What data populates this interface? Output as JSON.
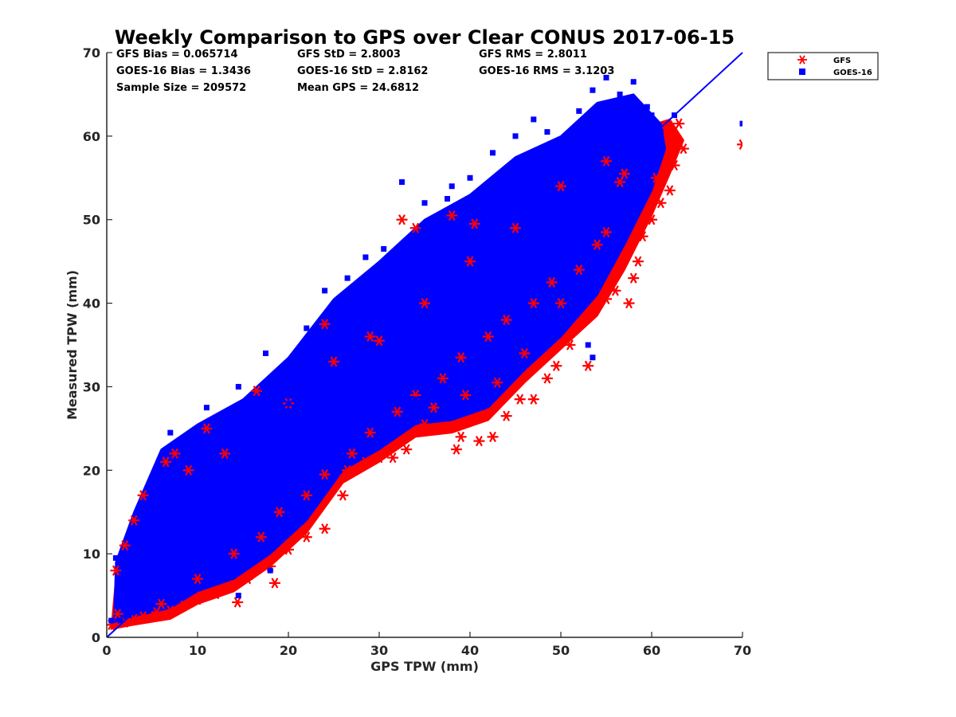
{
  "chart_data": {
    "type": "scatter",
    "title": "Weekly Comparison to GPS over Clear CONUS 2017-06-15",
    "xlabel": "GPS TPW (mm)",
    "ylabel": "Measured TPW (mm)",
    "xlim": [
      0,
      70
    ],
    "ylim": [
      0,
      70
    ],
    "xticks": [
      "0",
      "10",
      "20",
      "30",
      "40",
      "50",
      "60",
      "70"
    ],
    "yticks": [
      "0",
      "10",
      "20",
      "30",
      "40",
      "50",
      "60",
      "70"
    ],
    "grid": false,
    "legend_position": "outside-top-right",
    "reference_line": {
      "from": [
        0,
        0
      ],
      "to": [
        70,
        70
      ],
      "color": "#0000ff"
    },
    "stats": [
      [
        "GFS Bias = 0.065714",
        "GFS StD = 2.8003",
        "GFS RMS = 2.8011"
      ],
      [
        "GOES-16 Bias = 1.3436",
        "GOES-16 StD = 2.8162",
        "GOES-16 RMS = 3.1203"
      ],
      [
        "Sample Size = 209572",
        "Mean GPS = 24.6812",
        ""
      ]
    ],
    "series": [
      {
        "name": "GFS",
        "marker": "asterisk",
        "color": "#ff0000",
        "points": [
          [
            0.5,
            1.5
          ],
          [
            1.2,
            2.8
          ],
          [
            2.0,
            1.8
          ],
          [
            3.0,
            2.2
          ],
          [
            4.0,
            2.5
          ],
          [
            5.5,
            3.0
          ],
          [
            7.0,
            3.2
          ],
          [
            8.5,
            3.8
          ],
          [
            10.0,
            4.5
          ],
          [
            12.0,
            5.2
          ],
          [
            14.4,
            4.2
          ],
          [
            15.5,
            7.0
          ],
          [
            18.5,
            6.5
          ],
          [
            18.0,
            8.5
          ],
          [
            20.0,
            10.5
          ],
          [
            22.0,
            12.0
          ],
          [
            24.0,
            13.0
          ],
          [
            26.0,
            17.0
          ],
          [
            26.5,
            20.0
          ],
          [
            28.5,
            21.0
          ],
          [
            30.0,
            21.5
          ],
          [
            31.5,
            21.5
          ],
          [
            33.0,
            22.5
          ],
          [
            35.0,
            25.5
          ],
          [
            37.0,
            25.0
          ],
          [
            38.5,
            22.5
          ],
          [
            39.0,
            24.0
          ],
          [
            41.0,
            23.5
          ],
          [
            42.5,
            24.0
          ],
          [
            44.0,
            26.5
          ],
          [
            45.5,
            28.5
          ],
          [
            47.0,
            28.5
          ],
          [
            48.5,
            31.0
          ],
          [
            49.5,
            32.5
          ],
          [
            51.0,
            35.0
          ],
          [
            53.0,
            32.5
          ],
          [
            53.5,
            39.0
          ],
          [
            55.0,
            40.5
          ],
          [
            56.0,
            41.5
          ],
          [
            57.5,
            40.0
          ],
          [
            58.0,
            43.0
          ],
          [
            58.5,
            45.0
          ],
          [
            59.0,
            48.0
          ],
          [
            60.0,
            50.0
          ],
          [
            61.0,
            52.0
          ],
          [
            62.0,
            53.5
          ],
          [
            62.5,
            56.5
          ],
          [
            63.5,
            58.5
          ],
          [
            63.0,
            61.5
          ],
          [
            70.0,
            59.0
          ],
          [
            60.5,
            55.0
          ],
          [
            57.0,
            55.5
          ],
          [
            56.5,
            54.5
          ],
          [
            55.0,
            48.5
          ],
          [
            50.0,
            40.0
          ],
          [
            46.0,
            34.0
          ],
          [
            43.0,
            30.5
          ],
          [
            39.5,
            29.0
          ],
          [
            36.0,
            27.5
          ],
          [
            32.5,
            50.0
          ],
          [
            34.0,
            49.0
          ],
          [
            38.0,
            50.5
          ],
          [
            40.5,
            49.5
          ],
          [
            24.0,
            37.5
          ],
          [
            30.0,
            35.5
          ],
          [
            16.5,
            29.5
          ],
          [
            11.0,
            25.0
          ],
          [
            7.5,
            22.0
          ],
          [
            6.5,
            21.0
          ],
          [
            4.0,
            17.0
          ],
          [
            3.0,
            14.0
          ],
          [
            2.0,
            11.0
          ],
          [
            1.0,
            8.0
          ],
          [
            9.0,
            20.0
          ],
          [
            13.0,
            22.0
          ],
          [
            20.0,
            28.0
          ],
          [
            25.0,
            33.0
          ],
          [
            29.0,
            36.0
          ],
          [
            35.0,
            40.0
          ],
          [
            40.0,
            45.0
          ],
          [
            45.0,
            49.0
          ],
          [
            50.0,
            54.0
          ],
          [
            55.0,
            57.0
          ],
          [
            14.0,
            10.0
          ],
          [
            17.0,
            12.0
          ],
          [
            22.0,
            17.0
          ],
          [
            27.0,
            22.0
          ],
          [
            32.0,
            27.0
          ],
          [
            37.0,
            31.0
          ],
          [
            42.0,
            36.0
          ],
          [
            47.0,
            40.0
          ],
          [
            52.0,
            44.0
          ],
          [
            10.0,
            7.0
          ],
          [
            6.0,
            4.0
          ],
          [
            19.0,
            15.0
          ],
          [
            24.0,
            19.5
          ],
          [
            29.0,
            24.5
          ],
          [
            34.0,
            29.0
          ],
          [
            39.0,
            33.5
          ],
          [
            44.0,
            38.0
          ],
          [
            49.0,
            42.5
          ],
          [
            54.0,
            47.0
          ]
        ]
      },
      {
        "name": "GOES-16",
        "marker": "square",
        "color": "#0000ff",
        "points": [
          [
            0.5,
            2.0
          ],
          [
            1.0,
            9.5
          ],
          [
            2.0,
            8.5
          ],
          [
            3.0,
            12.5
          ],
          [
            4.0,
            15.5
          ],
          [
            5.0,
            18.0
          ],
          [
            7.0,
            24.5
          ],
          [
            8.0,
            23.0
          ],
          [
            11.0,
            27.5
          ],
          [
            12.5,
            26.0
          ],
          [
            14.5,
            30.0
          ],
          [
            17.5,
            34.0
          ],
          [
            20.0,
            33.0
          ],
          [
            22.0,
            37.0
          ],
          [
            24.0,
            41.5
          ],
          [
            26.5,
            43.0
          ],
          [
            28.5,
            45.5
          ],
          [
            30.5,
            46.5
          ],
          [
            32.5,
            54.5
          ],
          [
            35.0,
            52.0
          ],
          [
            37.5,
            52.5
          ],
          [
            38.0,
            54.0
          ],
          [
            40.0,
            55.0
          ],
          [
            42.5,
            58.0
          ],
          [
            45.0,
            60.0
          ],
          [
            47.0,
            62.0
          ],
          [
            48.5,
            60.5
          ],
          [
            52.0,
            63.0
          ],
          [
            53.5,
            65.5
          ],
          [
            55.0,
            67.0
          ],
          [
            56.5,
            65.0
          ],
          [
            58.0,
            66.5
          ],
          [
            59.5,
            63.5
          ],
          [
            61.0,
            60.5
          ],
          [
            62.5,
            62.5
          ],
          [
            70.0,
            61.5
          ],
          [
            50.5,
            60.0
          ],
          [
            51.0,
            57.5
          ],
          [
            53.0,
            35.0
          ],
          [
            53.5,
            33.5
          ],
          [
            48.0,
            41.5
          ],
          [
            46.0,
            39.0
          ],
          [
            43.0,
            35.0
          ],
          [
            40.0,
            32.5
          ],
          [
            37.0,
            30.0
          ],
          [
            34.0,
            28.5
          ],
          [
            31.0,
            25.5
          ],
          [
            28.0,
            24.0
          ],
          [
            25.0,
            22.0
          ],
          [
            22.0,
            19.5
          ],
          [
            19.0,
            16.5
          ],
          [
            16.0,
            14.0
          ],
          [
            13.0,
            11.0
          ],
          [
            10.0,
            9.0
          ],
          [
            8.0,
            7.0
          ],
          [
            6.0,
            6.0
          ],
          [
            4.0,
            4.5
          ],
          [
            2.5,
            3.0
          ],
          [
            1.5,
            2.0
          ],
          [
            14.5,
            5.0
          ],
          [
            18.0,
            8.0
          ],
          [
            29.0,
            29.0
          ],
          [
            33.0,
            33.0
          ],
          [
            39.0,
            38.5
          ],
          [
            45.0,
            45.0
          ],
          [
            50.0,
            49.5
          ],
          [
            5.0,
            7.5
          ],
          [
            9.0,
            12.0
          ],
          [
            12.0,
            16.0
          ],
          [
            15.0,
            19.0
          ],
          [
            18.0,
            22.5
          ],
          [
            21.0,
            25.5
          ],
          [
            24.0,
            28.0
          ],
          [
            27.0,
            31.5
          ],
          [
            30.0,
            34.5
          ],
          [
            33.0,
            38.0
          ],
          [
            36.0,
            41.0
          ],
          [
            39.0,
            44.0
          ],
          [
            42.0,
            47.0
          ],
          [
            45.0,
            50.5
          ],
          [
            48.0,
            53.0
          ],
          [
            51.0,
            55.5
          ],
          [
            54.0,
            58.5
          ],
          [
            57.0,
            61.0
          ],
          [
            60.0,
            62.5
          ],
          [
            6.0,
            13.0
          ],
          [
            10.0,
            17.5
          ],
          [
            14.0,
            22.0
          ],
          [
            20.0,
            28.0
          ],
          [
            26.0,
            35.0
          ],
          [
            32.0,
            40.5
          ],
          [
            38.0,
            46.5
          ],
          [
            44.0,
            52.0
          ],
          [
            49.0,
            56.0
          ],
          [
            3.0,
            6.0
          ],
          [
            7.0,
            10.0
          ],
          [
            11.0,
            14.0
          ],
          [
            17.0,
            19.5
          ],
          [
            23.0,
            26.0
          ]
        ]
      }
    ]
  }
}
